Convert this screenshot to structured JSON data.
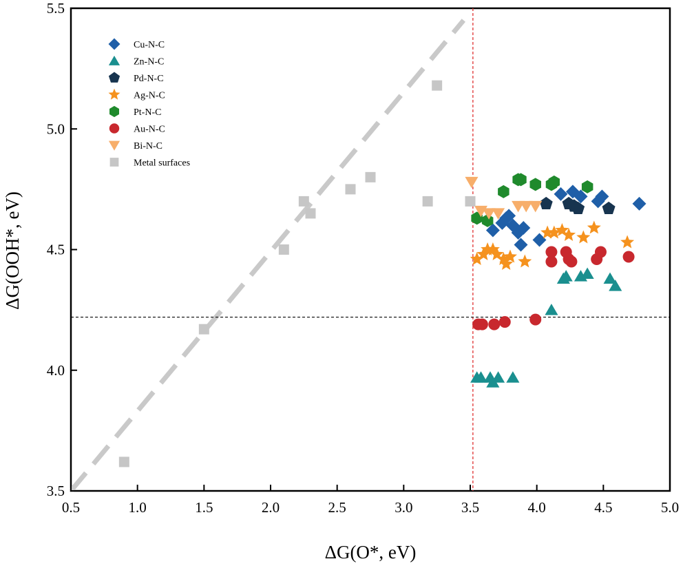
{
  "chart_data": {
    "type": "scatter",
    "xlabel": "ΔG(O*, eV)",
    "ylabel": "ΔG(OOH*, eV)",
    "xlim": [
      0.5,
      5.0
    ],
    "ylim": [
      3.5,
      5.5
    ],
    "xticks": [
      "0.5",
      "1.0",
      "1.5",
      "2.0",
      "2.5",
      "3.0",
      "3.5",
      "4.0",
      "4.5",
      "5.0"
    ],
    "yticks": [
      "3.5",
      "4.0",
      "4.5",
      "5.0",
      "5.5"
    ],
    "grid": false,
    "legend_position": "top-left",
    "reference_lines": {
      "vertical_x": 3.52,
      "horizontal_y": 4.22,
      "scaling_line": [
        [
          0.5,
          3.5
        ],
        [
          3.45,
          5.45
        ]
      ]
    },
    "series": [
      {
        "name": "Cu-N-C",
        "marker": "diamond",
        "color": "#1f5fa8",
        "points": [
          [
            3.67,
            4.58
          ],
          [
            3.74,
            4.61
          ],
          [
            3.77,
            4.63
          ],
          [
            3.79,
            4.64
          ],
          [
            3.82,
            4.6
          ],
          [
            3.86,
            4.57
          ],
          [
            3.88,
            4.52
          ],
          [
            3.9,
            4.59
          ],
          [
            4.02,
            4.54
          ],
          [
            4.18,
            4.73
          ],
          [
            4.27,
            4.74
          ],
          [
            4.33,
            4.72
          ],
          [
            4.46,
            4.7
          ],
          [
            4.49,
            4.72
          ],
          [
            4.77,
            4.69
          ]
        ]
      },
      {
        "name": "Zn-N-C",
        "marker": "triangle",
        "color": "#1a8f8f",
        "points": [
          [
            3.55,
            3.97
          ],
          [
            3.58,
            3.97
          ],
          [
            3.65,
            3.97
          ],
          [
            3.67,
            3.95
          ],
          [
            3.71,
            3.97
          ],
          [
            3.82,
            3.97
          ],
          [
            4.11,
            4.25
          ],
          [
            4.2,
            4.38
          ],
          [
            4.22,
            4.39
          ],
          [
            4.33,
            4.39
          ],
          [
            4.38,
            4.4
          ],
          [
            4.55,
            4.38
          ],
          [
            4.59,
            4.35
          ]
        ]
      },
      {
        "name": "Pd-N-C",
        "marker": "pentagon",
        "color": "#17344f",
        "points": [
          [
            4.07,
            4.69
          ],
          [
            4.24,
            4.69
          ],
          [
            4.28,
            4.68
          ],
          [
            4.31,
            4.67
          ],
          [
            4.54,
            4.67
          ]
        ]
      },
      {
        "name": "Ag-N-C",
        "marker": "star",
        "color": "#f5921e",
        "points": [
          [
            3.55,
            4.46
          ],
          [
            3.6,
            4.48
          ],
          [
            3.63,
            4.5
          ],
          [
            3.67,
            4.5
          ],
          [
            3.7,
            4.48
          ],
          [
            3.75,
            4.46
          ],
          [
            3.77,
            4.44
          ],
          [
            3.8,
            4.47
          ],
          [
            3.91,
            4.45
          ],
          [
            4.08,
            4.57
          ],
          [
            4.13,
            4.57
          ],
          [
            4.19,
            4.58
          ],
          [
            4.24,
            4.56
          ],
          [
            4.35,
            4.55
          ],
          [
            4.43,
            4.59
          ],
          [
            4.68,
            4.53
          ]
        ]
      },
      {
        "name": "Pt-N-C",
        "marker": "hexagon",
        "color": "#1f8a2c",
        "points": [
          [
            3.55,
            4.63
          ],
          [
            3.63,
            4.62
          ],
          [
            3.75,
            4.74
          ],
          [
            3.86,
            4.79
          ],
          [
            3.88,
            4.79
          ],
          [
            3.99,
            4.77
          ],
          [
            4.11,
            4.77
          ],
          [
            4.13,
            4.78
          ],
          [
            4.38,
            4.76
          ]
        ]
      },
      {
        "name": "Au-N-C",
        "marker": "circle",
        "color": "#c8282e",
        "points": [
          [
            3.56,
            4.19
          ],
          [
            3.59,
            4.19
          ],
          [
            3.68,
            4.19
          ],
          [
            3.76,
            4.2
          ],
          [
            3.99,
            4.21
          ],
          [
            4.11,
            4.49
          ],
          [
            4.11,
            4.45
          ],
          [
            4.22,
            4.49
          ],
          [
            4.24,
            4.46
          ],
          [
            4.26,
            4.45
          ],
          [
            4.45,
            4.46
          ],
          [
            4.48,
            4.49
          ],
          [
            4.69,
            4.47
          ]
        ]
      },
      {
        "name": "Bi-N-C",
        "marker": "triangle-down",
        "color": "#f7ae6a",
        "points": [
          [
            3.51,
            4.78
          ],
          [
            3.58,
            4.66
          ],
          [
            3.64,
            4.65
          ],
          [
            3.71,
            4.65
          ],
          [
            3.86,
            4.68
          ],
          [
            3.92,
            4.68
          ],
          [
            3.99,
            4.68
          ]
        ]
      },
      {
        "name": "Metal surfaces",
        "marker": "square",
        "color": "#c6c6c6",
        "points": [
          [
            0.9,
            3.62
          ],
          [
            1.5,
            4.17
          ],
          [
            2.1,
            4.5
          ],
          [
            2.25,
            4.7
          ],
          [
            2.3,
            4.65
          ],
          [
            2.6,
            4.75
          ],
          [
            2.75,
            4.8
          ],
          [
            3.18,
            4.7
          ],
          [
            3.25,
            5.18
          ],
          [
            3.5,
            4.7
          ]
        ]
      }
    ]
  }
}
